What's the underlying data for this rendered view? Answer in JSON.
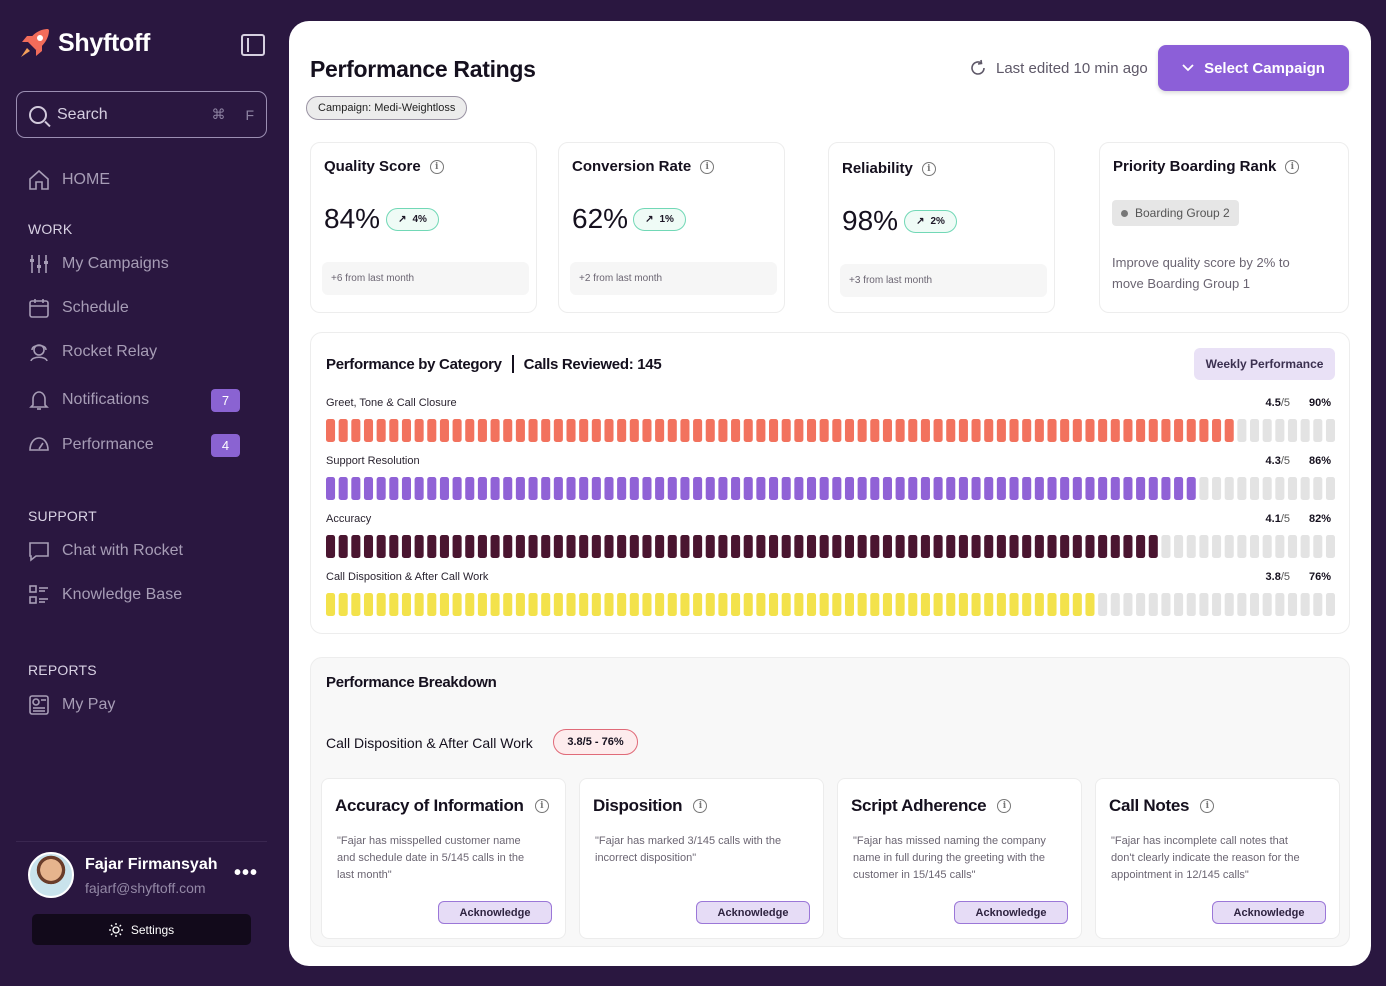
{
  "app": {
    "name": "Shyftoff"
  },
  "search": {
    "placeholder": "Search",
    "shortcut_1": "⌘",
    "shortcut_2": "F"
  },
  "nav": {
    "home": "HOME",
    "work_title": "WORK",
    "my_campaigns": "My Campaigns",
    "schedule": "Schedule",
    "rocket_relay": "Rocket Relay",
    "notifications": "Notifications",
    "notifications_badge": "7",
    "performance": "Performance",
    "performance_badge": "4",
    "support_title": "SUPPORT",
    "chat": "Chat with Rocket",
    "knowledge": "Knowledge Base",
    "reports_title": "REPORTS",
    "my_pay": "My Pay"
  },
  "user": {
    "name": "Fajar Firmansyah",
    "email": "fajarf@shyftoff.com",
    "settings_label": "Settings"
  },
  "header": {
    "title": "Performance Ratings",
    "campaign_chip": "Campaign: Medi-Weightloss",
    "last_edited": "Last edited 10 min ago",
    "select_campaign": "Select Campaign"
  },
  "stats": {
    "quality": {
      "title": "Quality Score",
      "value": "84%",
      "trend": "4%",
      "sub": "+6 from last month"
    },
    "conversion": {
      "title": "Conversion Rate",
      "value": "62%",
      "trend": "1%",
      "sub": "+2 from last month"
    },
    "reliability": {
      "title": "Reliability",
      "value": "98%",
      "trend": "2%",
      "sub": "+3 from last month"
    },
    "priority": {
      "title": "Priority Boarding Rank",
      "group": "Boarding Group 2",
      "note": "Improve quality score by 2% to move Boarding Group 1"
    }
  },
  "category": {
    "title": "Performance by Category",
    "calls_reviewed": "Calls Reviewed: 145",
    "weekly_button": "Weekly Performance",
    "rows": [
      {
        "label": "Greet, Tone & Call Closure",
        "score": "4.5",
        "denom": "/5",
        "pct": "90%",
        "fraction": 0.9,
        "color": "#f2725e"
      },
      {
        "label": "Support Resolution",
        "score": "4.3",
        "denom": "/5",
        "pct": "86%",
        "fraction": 0.86,
        "color": "#9062d6"
      },
      {
        "label": "Accuracy",
        "score": "4.1",
        "denom": "/5",
        "pct": "82%",
        "fraction": 0.82,
        "color": "#4a1530"
      },
      {
        "label": "Call Disposition & After Call Work",
        "score": "3.8",
        "denom": "/5",
        "pct": "76%",
        "fraction": 0.76,
        "color": "#f3e24b"
      }
    ],
    "empty_color": "#e3e3e3"
  },
  "breakdown": {
    "title": "Performance Breakdown",
    "subtitle": "Call Disposition & After Call Work",
    "pill": "3.8/5  -  76%",
    "cards": [
      {
        "title": "Accuracy of Information",
        "quote": "\"Fajar has misspelled customer name and schedule date in 5/145 calls in the last month\"",
        "button": "Acknowledge"
      },
      {
        "title": "Disposition",
        "quote": "\"Fajar has marked 3/145 calls with the incorrect disposition\"",
        "button": "Acknowledge"
      },
      {
        "title": "Script Adherence",
        "quote": "\"Fajar has missed naming the company name in full during the greeting with the customer in 15/145 calls\"",
        "button": "Acknowledge"
      },
      {
        "title": "Call Notes",
        "quote": "\"Fajar has incomplete call notes that don't clearly indicate the reason for the appointment in 12/145 calls\"",
        "button": "Acknowledge"
      }
    ]
  },
  "colors": {
    "accent": "#8c5fd8",
    "sidebar_bg": "#2a1740",
    "trend_border": "#71d8b6"
  }
}
